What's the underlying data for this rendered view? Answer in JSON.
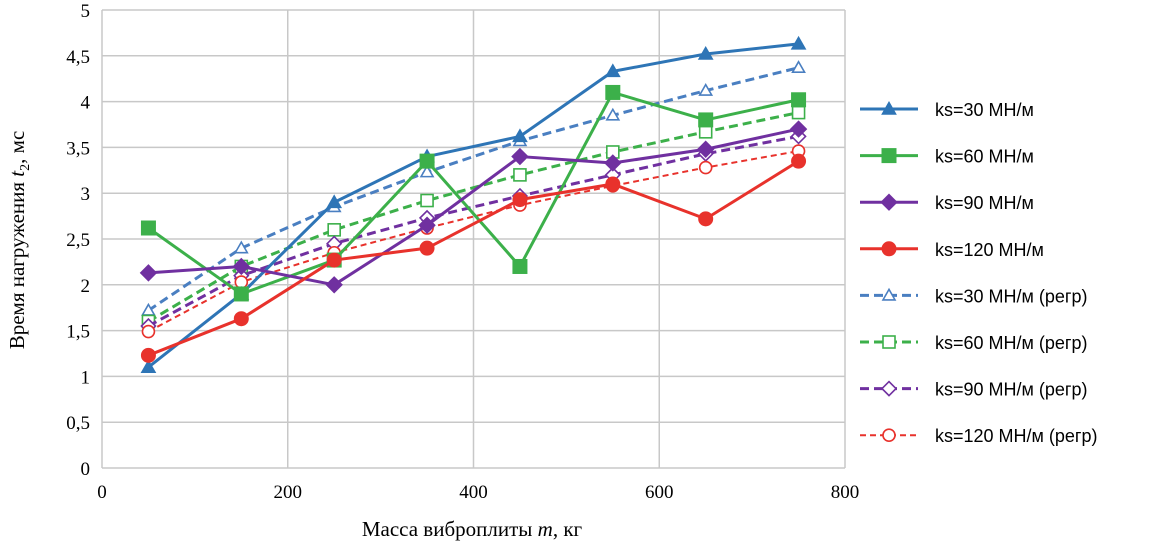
{
  "chart_data": {
    "type": "line",
    "xlabel_parts": [
      "Масса виброплиты ",
      "m",
      ", кг"
    ],
    "ylabel_parts": [
      "Время нагружения ",
      "t",
      "2",
      ", мс"
    ],
    "xlim": [
      0,
      800
    ],
    "ylim": [
      0,
      5
    ],
    "x_ticks": [
      0,
      200,
      400,
      600,
      800
    ],
    "y_ticks": [
      0,
      0.5,
      1,
      1.5,
      2,
      2.5,
      3,
      3.5,
      4,
      4.5,
      5
    ],
    "x_tick_labels": [
      "0",
      "200",
      "400",
      "600",
      "800"
    ],
    "y_tick_labels": [
      "0",
      "0,5",
      "1",
      "1,5",
      "2",
      "2,5",
      "3",
      "3,5",
      "4",
      "4,5",
      "5"
    ],
    "grid": true,
    "legend_position": "right",
    "x": [
      50,
      150,
      250,
      350,
      450,
      550,
      650,
      750
    ],
    "series": [
      {
        "name": "ks=30 МН/м",
        "values": [
          1.1,
          1.9,
          2.9,
          3.4,
          3.62,
          4.33,
          4.52,
          4.63
        ],
        "color": "#2e75b6",
        "marker": "triangle",
        "style": "solid"
      },
      {
        "name": "ks=60 МН/м",
        "values": [
          2.62,
          1.9,
          2.27,
          3.35,
          2.2,
          4.1,
          3.8,
          4.02
        ],
        "color": "#3cb04a",
        "marker": "square",
        "style": "solid"
      },
      {
        "name": "ks=90 МН/м",
        "values": [
          2.13,
          2.2,
          2.0,
          2.65,
          3.4,
          3.33,
          3.48,
          3.7
        ],
        "color": "#7030a0",
        "marker": "diamond",
        "style": "solid"
      },
      {
        "name": "ks=120 МН/м",
        "values": [
          1.23,
          1.63,
          2.27,
          2.4,
          2.93,
          3.1,
          2.72,
          3.35
        ],
        "color": "#e8322c",
        "marker": "circle",
        "style": "solid"
      },
      {
        "name": "ks=30 МН/м (регр)",
        "values": [
          1.72,
          2.4,
          2.85,
          3.23,
          3.57,
          3.85,
          4.12,
          4.37
        ],
        "color": "#4a7fc1",
        "marker": "triangle-open",
        "style": "dashed"
      },
      {
        "name": "ks=60 МН/м (регр)",
        "values": [
          1.6,
          2.2,
          2.6,
          2.92,
          3.2,
          3.45,
          3.67,
          3.88
        ],
        "color": "#3cb04a",
        "marker": "square-open",
        "style": "dashed"
      },
      {
        "name": "ks=90 МН/м (регр)",
        "values": [
          1.55,
          2.1,
          2.45,
          2.73,
          2.97,
          3.2,
          3.43,
          3.62
        ],
        "color": "#7030a0",
        "marker": "diamond-open",
        "style": "dashed"
      },
      {
        "name": "ks=120 МН/м (регр)",
        "values": [
          1.49,
          2.03,
          2.35,
          2.62,
          2.87,
          3.08,
          3.28,
          3.46
        ],
        "color": "#e8322c",
        "marker": "circle-open",
        "style": "dashed-fine"
      }
    ]
  }
}
